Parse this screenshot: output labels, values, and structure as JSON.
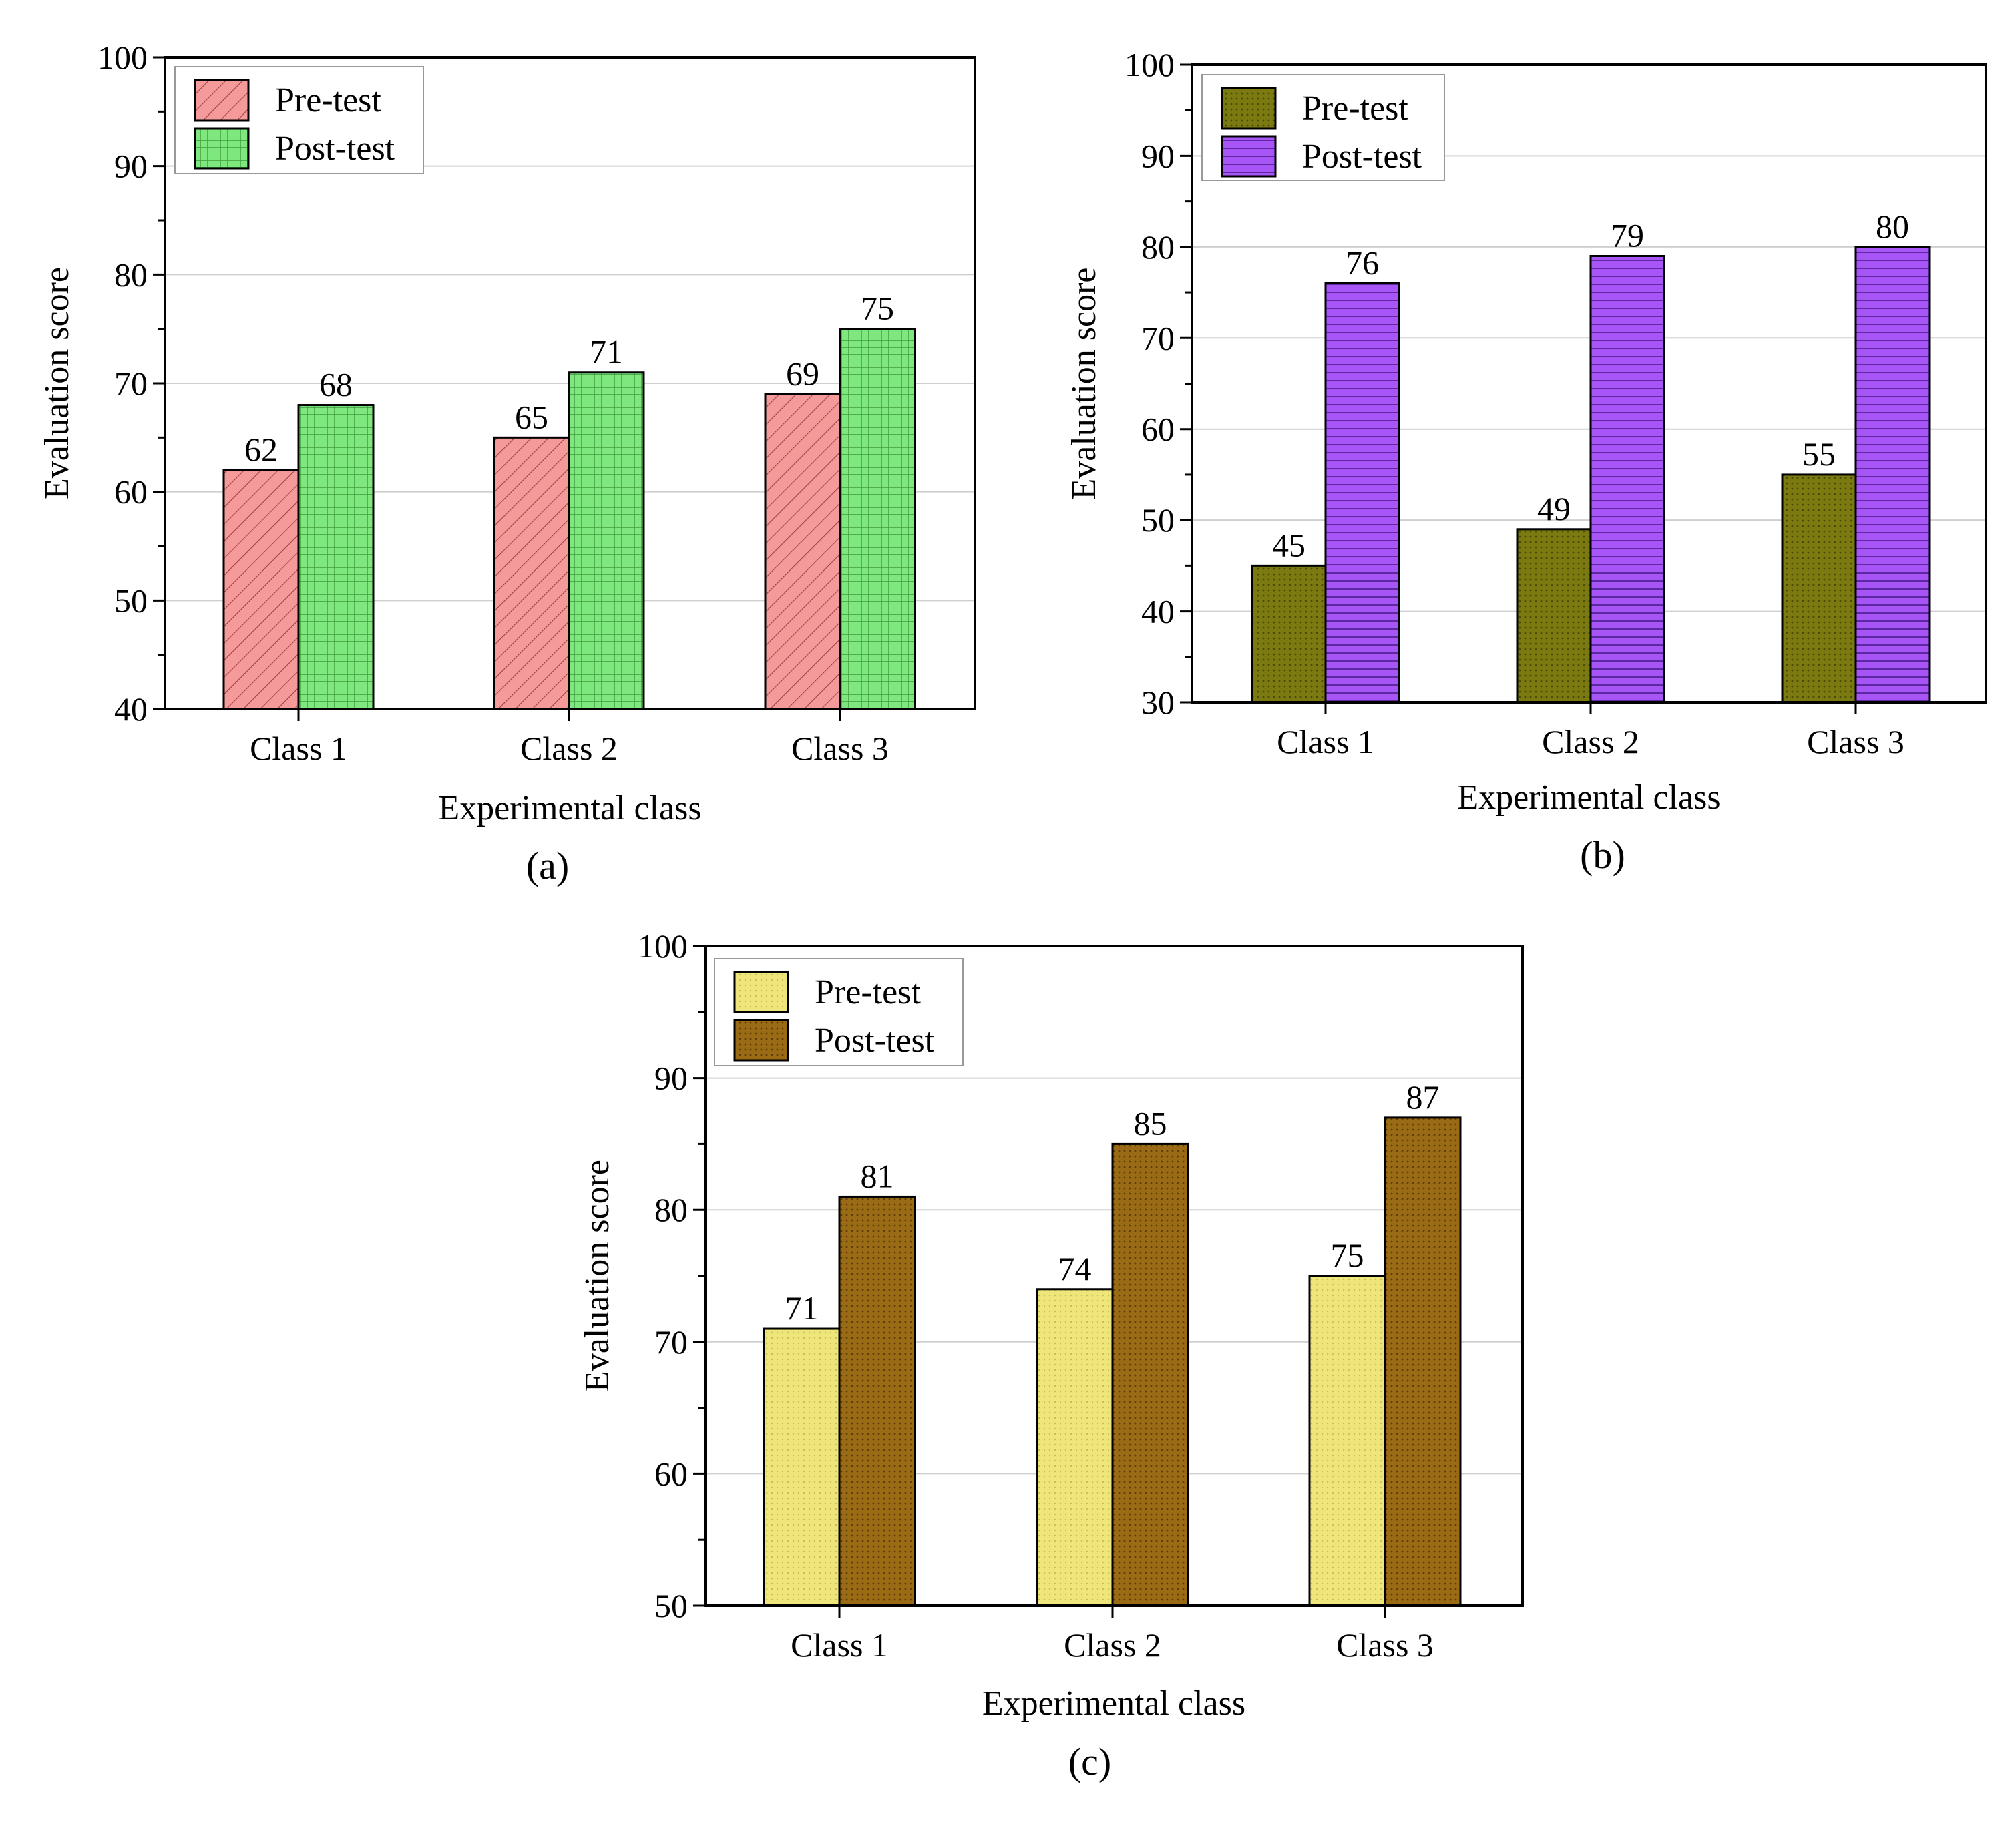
{
  "chart_data": [
    {
      "id": "a",
      "type": "bar",
      "panel_label": "(a)",
      "title": "",
      "xlabel": "Experimental class",
      "ylabel": "Evaluation score",
      "categories": [
        "Class 1",
        "Class 2",
        "Class 3"
      ],
      "ylim": [
        40,
        100
      ],
      "yticks": [
        40,
        50,
        60,
        70,
        80,
        90,
        100
      ],
      "grid": true,
      "legend_position": "top-left",
      "series": [
        {
          "name": "Pre-test",
          "values": [
            62,
            65,
            69
          ],
          "color": "#f59a9a",
          "pattern": "diagonal-hatch"
        },
        {
          "name": "Post-test",
          "values": [
            68,
            71,
            75
          ],
          "color": "#7ee87e",
          "pattern": "grid"
        }
      ]
    },
    {
      "id": "b",
      "type": "bar",
      "panel_label": "(b)",
      "title": "",
      "xlabel": "Experimental class",
      "ylabel": "Evaluation score",
      "categories": [
        "Class 1",
        "Class 2",
        "Class 3"
      ],
      "ylim": [
        30,
        100
      ],
      "yticks": [
        30,
        40,
        50,
        60,
        70,
        80,
        90,
        100
      ],
      "grid": true,
      "legend_position": "top-left",
      "series": [
        {
          "name": "Pre-test",
          "values": [
            45,
            49,
            55
          ],
          "color": "#7a7a10",
          "pattern": "dots"
        },
        {
          "name": "Post-test",
          "values": [
            76,
            79,
            80
          ],
          "color": "#a855f7",
          "pattern": "horizontal-lines"
        }
      ]
    },
    {
      "id": "c",
      "type": "bar",
      "panel_label": "(c)",
      "title": "",
      "xlabel": "Experimental class",
      "ylabel": "Evaluation score",
      "categories": [
        "Class 1",
        "Class 2",
        "Class 3"
      ],
      "ylim": [
        50,
        100
      ],
      "yticks": [
        50,
        60,
        70,
        80,
        90,
        100
      ],
      "grid": true,
      "legend_position": "top-left",
      "series": [
        {
          "name": "Pre-test",
          "values": [
            71,
            74,
            75
          ],
          "color": "#eee67a",
          "pattern": "dots"
        },
        {
          "name": "Post-test",
          "values": [
            81,
            85,
            87
          ],
          "color": "#9a6a14",
          "pattern": "dots"
        }
      ]
    }
  ]
}
